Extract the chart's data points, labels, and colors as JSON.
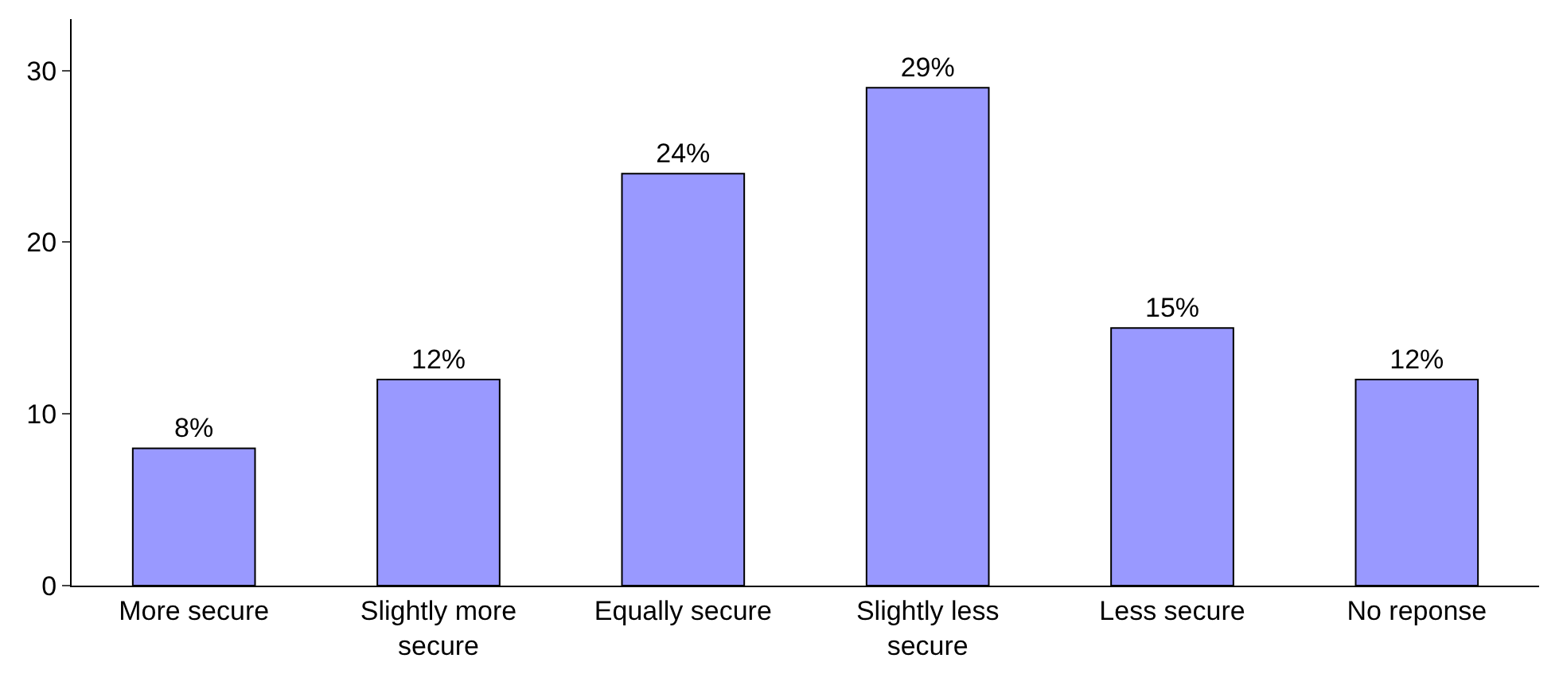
{
  "chart_data": {
    "type": "bar",
    "categories": [
      "More secure",
      "Slightly more secure",
      "Equally secure",
      "Slightly less secure",
      "Less secure",
      "No reponse"
    ],
    "values": [
      8,
      12,
      24,
      29,
      15,
      12
    ],
    "value_labels": [
      "8%",
      "12%",
      "24%",
      "29%",
      "15%",
      "12%"
    ],
    "color": "#9999ff",
    "ylim": [
      0,
      33
    ],
    "yticks": [
      0,
      10,
      20,
      30
    ],
    "grid": false
  }
}
